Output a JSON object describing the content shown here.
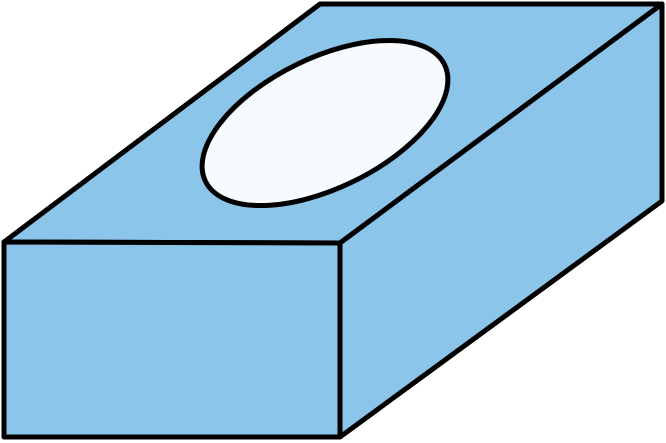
{
  "diagram": {
    "subject": "tissue-box",
    "colors": {
      "box_fill": "#8CC5EA",
      "opening_fill": "#F8FBFE",
      "outline": "#000000",
      "background": "#FFFFFF"
    }
  }
}
